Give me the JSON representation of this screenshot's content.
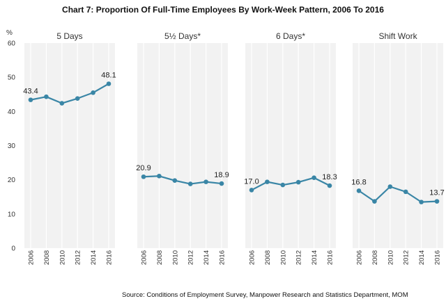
{
  "title": "Chart 7: Proportion Of Full-Time Employees By Work-Week Pattern, 2006 To 2016",
  "source": "Source: Conditions of Employment Survey, Manpower Research and Statistics Department, MOM",
  "colors": {
    "line": "#3a86a6",
    "panel": "#f2f2f2",
    "gridline": "#ffffff"
  },
  "chart_data": {
    "type": "line",
    "ylabel": "%",
    "ylim": [
      0,
      60
    ],
    "yticks": [
      0,
      10,
      20,
      30,
      40,
      50,
      60
    ],
    "categories": [
      "2006",
      "2008",
      "2010",
      "2012",
      "2014",
      "2016"
    ],
    "series": [
      {
        "name": "5 Days",
        "values": [
          43.4,
          44.3,
          42.4,
          43.8,
          45.5,
          48.1
        ],
        "labels": [
          {
            "index": 0,
            "text": "43.4"
          },
          {
            "index": 5,
            "text": "48.1"
          }
        ]
      },
      {
        "name": "5½ Days*",
        "values": [
          20.9,
          21.1,
          19.8,
          18.8,
          19.4,
          18.9
        ],
        "labels": [
          {
            "index": 0,
            "text": "20.9"
          },
          {
            "index": 5,
            "text": "18.9"
          }
        ]
      },
      {
        "name": "6 Days*",
        "values": [
          17.0,
          19.4,
          18.5,
          19.3,
          20.6,
          18.3
        ],
        "labels": [
          {
            "index": 0,
            "text": "17.0"
          },
          {
            "index": 5,
            "text": "18.3"
          }
        ]
      },
      {
        "name": "Shift Work",
        "values": [
          16.8,
          13.7,
          18.0,
          16.5,
          13.5,
          13.7
        ],
        "labels": [
          {
            "index": 0,
            "text": "16.8"
          },
          {
            "index": 5,
            "text": "13.7"
          }
        ]
      }
    ]
  }
}
